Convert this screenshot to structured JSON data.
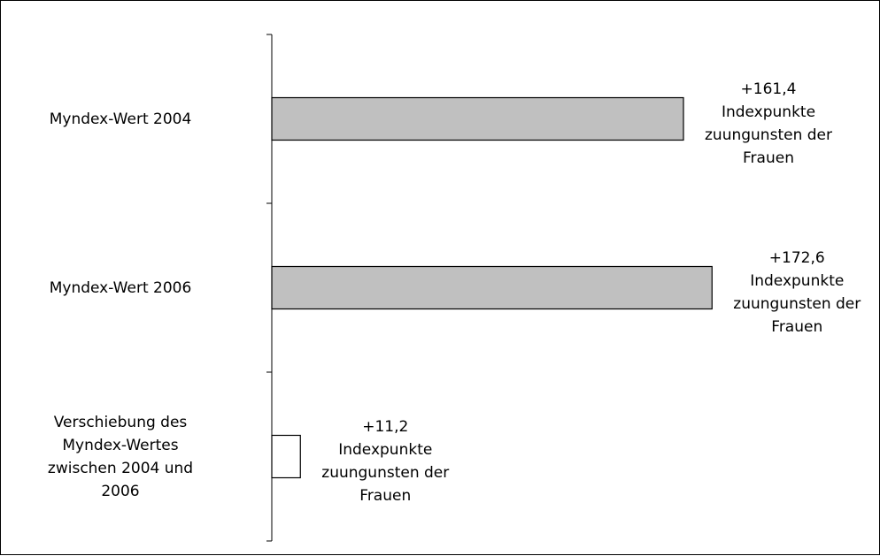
{
  "chart_data": {
    "type": "bar",
    "orientation": "horizontal",
    "categories": [
      "Myndex-Wert 2004",
      "Myndex-Wert 2006",
      "Verschiebung des Myndex-Wertes zwischen 2004 und 2006"
    ],
    "category_lines": [
      [
        "Myndex-Wert 2004"
      ],
      [
        "Myndex-Wert 2006"
      ],
      [
        "Verschiebung des",
        "Myndex-Wertes",
        "zwischen 2004 und",
        "2006"
      ]
    ],
    "values": [
      161.4,
      172.6,
      11.2
    ],
    "data_labels": [
      [
        "+161,4",
        "Indexpunkte",
        "zuungunsten der",
        "Frauen"
      ],
      [
        "+172,6",
        "Indexpunkte",
        "zuungunsten der",
        "Frauen"
      ],
      [
        "+11,2",
        "Indexpunkte",
        "zuungunsten der",
        "Frauen"
      ]
    ],
    "colors": [
      "#c0c0c0",
      "#c0c0c0",
      "#ffffff"
    ],
    "bar_outline": "#000000",
    "xlim": [
      0,
      180
    ],
    "grid": false,
    "legend": "none",
    "title": "",
    "xlabel": "",
    "ylabel": ""
  }
}
